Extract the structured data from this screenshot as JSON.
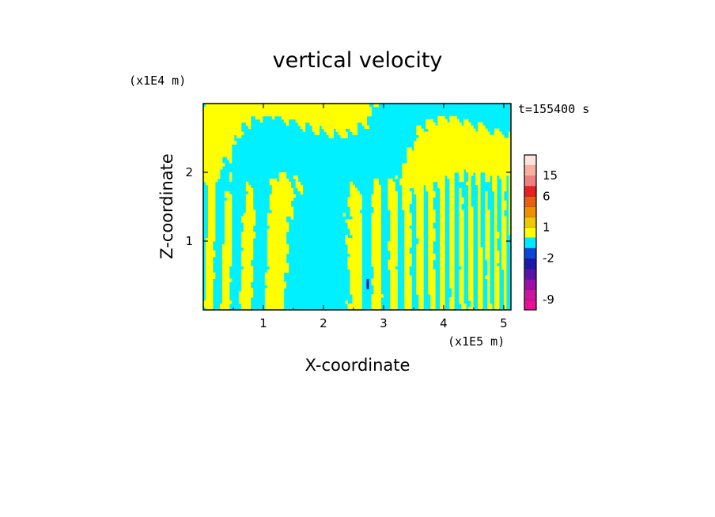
{
  "chart_data": {
    "type": "heatmap",
    "title": "vertical velocity",
    "xlabel": "X-coordinate",
    "ylabel": "Z-coordinate",
    "x_unit": "(x1E5 m)",
    "y_unit": "(x1E4 m)",
    "time_label": "t=155400 s",
    "x_ticks": [
      1,
      2,
      3,
      4,
      5
    ],
    "y_ticks": [
      1,
      2
    ],
    "xlim": [
      0,
      5.12
    ],
    "ylim": [
      0,
      3.0
    ],
    "field_description": "Filled contours of vertical velocity alternating between small positive (yellow) and small negative (cyan) values, with tilted wave bands in the upper region and near-vertical stripes in the lower region; a small negative anomaly near x≈2.75, z≈0.35.",
    "colorbar": {
      "tick_labels": [
        "15",
        "6",
        "1",
        "-2",
        "-9"
      ],
      "levels": [
        {
          "lo": -12,
          "hi": -9,
          "color": "#e8109a"
        },
        {
          "lo": -9,
          "hi": -6,
          "color": "#c8149e"
        },
        {
          "lo": -6,
          "hi": -4,
          "color": "#9a10a6"
        },
        {
          "lo": -4,
          "hi": -3,
          "color": "#5a12a8"
        },
        {
          "lo": -3,
          "hi": -2,
          "color": "#1a1aa8"
        },
        {
          "lo": -2,
          "hi": -1,
          "color": "#0a46d8"
        },
        {
          "lo": -1,
          "hi": 0,
          "color": "#00e8ff"
        },
        {
          "lo": 0,
          "hi": 1,
          "color": "#ffff00"
        },
        {
          "lo": 1,
          "hi": 2,
          "color": "#f0c800"
        },
        {
          "lo": 2,
          "hi": 4,
          "color": "#f09000"
        },
        {
          "lo": 4,
          "hi": 6,
          "color": "#e86010"
        },
        {
          "lo": 6,
          "hi": 10,
          "color": "#e82020"
        },
        {
          "lo": 10,
          "hi": 15,
          "color": "#f08080"
        },
        {
          "lo": 15,
          "hi": 20,
          "color": "#f8b0a0"
        },
        {
          "lo": 20,
          "hi": 25,
          "color": "#fde4dc"
        }
      ]
    },
    "colors": {
      "positive": "#ffff00",
      "negative": "#00f0ff",
      "anomaly": "#1a1aa8"
    }
  }
}
